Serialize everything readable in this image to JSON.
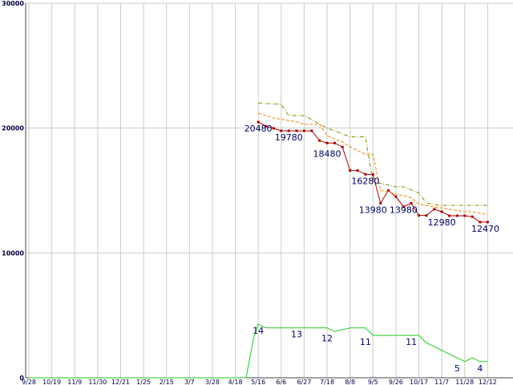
{
  "chart_data": {
    "type": "line",
    "ylim": [
      0,
      30000
    ],
    "y_ticks": [
      "0",
      "10000",
      "20000",
      "30000"
    ],
    "y_tick_values": [
      0,
      10000,
      20000,
      30000
    ],
    "grid": true,
    "categories": [
      "9/28",
      "10/19",
      "11/9",
      "11/30",
      "12/21",
      "1/25",
      "2/15",
      "3/7",
      "3/28",
      "4/18",
      "5/16",
      "6/6",
      "6/27",
      "7/18",
      "8/8",
      "9/5",
      "9/26",
      "10/17",
      "11/7",
      "11/28",
      "12/12"
    ],
    "series": [
      {
        "color": "#aa0000",
        "marker": "square",
        "x": [
          10.0,
          10.33,
          10.67,
          11.0,
          11.33,
          11.67,
          12.0,
          12.33,
          12.67,
          13.0,
          13.33,
          13.67,
          14.0,
          14.33,
          14.67,
          15.0,
          15.33,
          15.67,
          16.0,
          16.33,
          16.67,
          17.0,
          17.33,
          17.67,
          18.0,
          18.33,
          18.67,
          19.0,
          19.33,
          19.67,
          20.0
        ],
        "values": [
          20480,
          20150,
          19980,
          19780,
          19780,
          19780,
          19780,
          19780,
          19000,
          18800,
          18800,
          18480,
          16600,
          16600,
          16300,
          16280,
          13980,
          15000,
          14500,
          13700,
          13980,
          13000,
          13000,
          13500,
          13300,
          12980,
          12980,
          12980,
          12900,
          12470,
          12470
        ]
      },
      {
        "color": "#ee8800",
        "dash": "dashed",
        "x": [
          10.0,
          10.33,
          10.67,
          11.0,
          11.33,
          11.67,
          12.0,
          12.33,
          12.67,
          13.0,
          13.33,
          13.67,
          14.0,
          14.33,
          14.67,
          15.0,
          15.33,
          15.67,
          16.0,
          16.33,
          16.67,
          17.0,
          17.33,
          17.67,
          18.0,
          18.33,
          18.67,
          19.0,
          19.33,
          19.67,
          20.0
        ],
        "values": [
          21200,
          21000,
          20800,
          20700,
          20600,
          20500,
          20300,
          20300,
          20300,
          19400,
          19100,
          18900,
          18500,
          18200,
          17900,
          17900,
          15000,
          14900,
          14700,
          14600,
          14400,
          13900,
          13800,
          13700,
          13600,
          13500,
          13400,
          13300,
          13300,
          13200,
          13100
        ]
      },
      {
        "color": "#888800",
        "dash": "dashdot",
        "x": [
          10.0,
          11.0,
          11.33,
          12.0,
          13.0,
          14.0,
          14.67,
          15.0,
          16.0,
          16.33,
          17.0,
          17.33,
          18.0,
          19.0,
          20.0
        ],
        "values": [
          22000,
          21900,
          21000,
          21000,
          20000,
          19300,
          19300,
          15700,
          15300,
          15300,
          14800,
          14000,
          13800,
          13800,
          13800
        ]
      },
      {
        "color": "#22cc22",
        "x": [
          0,
          9.47,
          9.8,
          10.0,
          10.33,
          11.0,
          12.0,
          13.0,
          13.33,
          14.0,
          14.67,
          15.0,
          16.0,
          17.0,
          17.33,
          17.67,
          18.0,
          18.33,
          19.0,
          19.33,
          19.67,
          20.0
        ],
        "values": [
          0,
          0,
          3200,
          4300,
          4000,
          4000,
          4000,
          4000,
          3700,
          4000,
          4000,
          3400,
          3400,
          3400,
          2800,
          2500,
          2200,
          1900,
          1300,
          1600,
          1300,
          1300
        ]
      }
    ],
    "data_labels": [
      {
        "text": "20480",
        "x": 10.0,
        "y": 20480
      },
      {
        "text": "19780",
        "x": 11.33,
        "y": 19780
      },
      {
        "text": "18480",
        "x": 13.0,
        "y": 18480
      },
      {
        "text": "16280",
        "x": 14.67,
        "y": 16280
      },
      {
        "text": "13980",
        "x": 15.0,
        "y": 13980
      },
      {
        "text": "13980",
        "x": 16.33,
        "y": 13980
      },
      {
        "text": "12980",
        "x": 18.0,
        "y": 12980
      },
      {
        "text": "12470",
        "x": 19.9,
        "y": 12470
      },
      {
        "text": "14",
        "x": 10.0,
        "y": 4300
      },
      {
        "text": "13",
        "x": 11.67,
        "y": 4000
      },
      {
        "text": "12",
        "x": 13.0,
        "y": 3700
      },
      {
        "text": "11",
        "x": 14.67,
        "y": 3400
      },
      {
        "text": "11",
        "x": 16.67,
        "y": 3400
      },
      {
        "text": "5",
        "x": 18.67,
        "y": 1300
      },
      {
        "text": "4",
        "x": 19.67,
        "y": 1300
      }
    ],
    "colors": {
      "grid": "#cccccc",
      "axis": "#444444",
      "tick_text": "#000040",
      "label_text": "#000060"
    }
  }
}
